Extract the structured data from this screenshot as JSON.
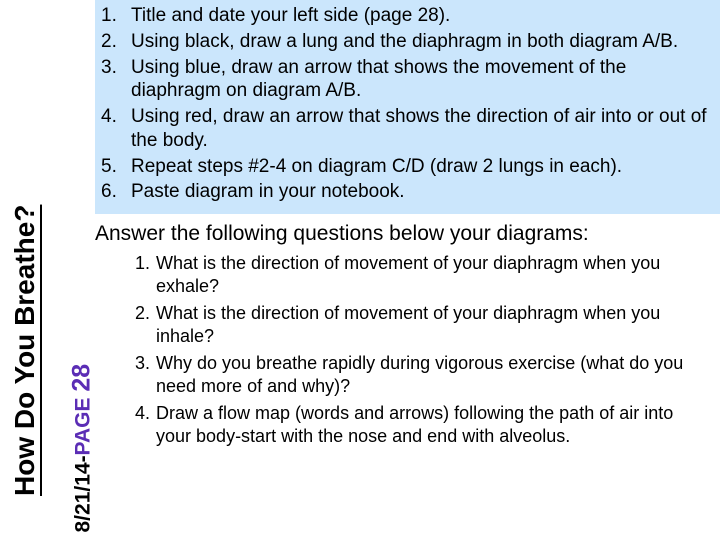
{
  "sidebar": {
    "title": "How Do You Breathe?",
    "date_prefix": "8/21/14-",
    "page_label": "PAGE",
    "page_number": "28"
  },
  "colors": {
    "top_block_bg": "#cbe6fc",
    "page_accent": "#5b2db5",
    "text": "#000000",
    "background": "#ffffff"
  },
  "typography": {
    "font_family": "Comic Sans MS",
    "body_fontsize_pt": 14,
    "title_fontsize_pt": 21,
    "subheading_fontsize_pt": 16
  },
  "instructions": [
    {
      "n": "1.",
      "text": "Title and date your left side (page 28)."
    },
    {
      "n": "2.",
      "text": "Using black, draw a lung and the diaphragm in both diagram A/B."
    },
    {
      "n": "3.",
      "text": "Using blue, draw an arrow that shows the movement of the diaphragm on diagram A/B."
    },
    {
      "n": "4.",
      "text": "Using red, draw an arrow that shows the direction of air into or out of the body."
    },
    {
      "n": "5.",
      "text": " Repeat steps #2-4 on diagram C/D (draw 2 lungs in each)."
    },
    {
      "n": "6.",
      "text": "Paste diagram in your notebook."
    }
  ],
  "subheading": "Answer the following questions below your diagrams:",
  "questions": [
    {
      "n": "1.",
      "text": "What is the direction of movement of your diaphragm when you exhale?"
    },
    {
      "n": "2.",
      "text": "What is the direction of movement of your diaphragm when you inhale?"
    },
    {
      "n": "3.",
      "text": "Why do you breathe rapidly during vigorous exercise (what do you need more of and why)?"
    },
    {
      "n": "4.",
      "text": "Draw a flow map (words and arrows) following the path of air into your body-start with the nose and end with alveolus."
    }
  ]
}
